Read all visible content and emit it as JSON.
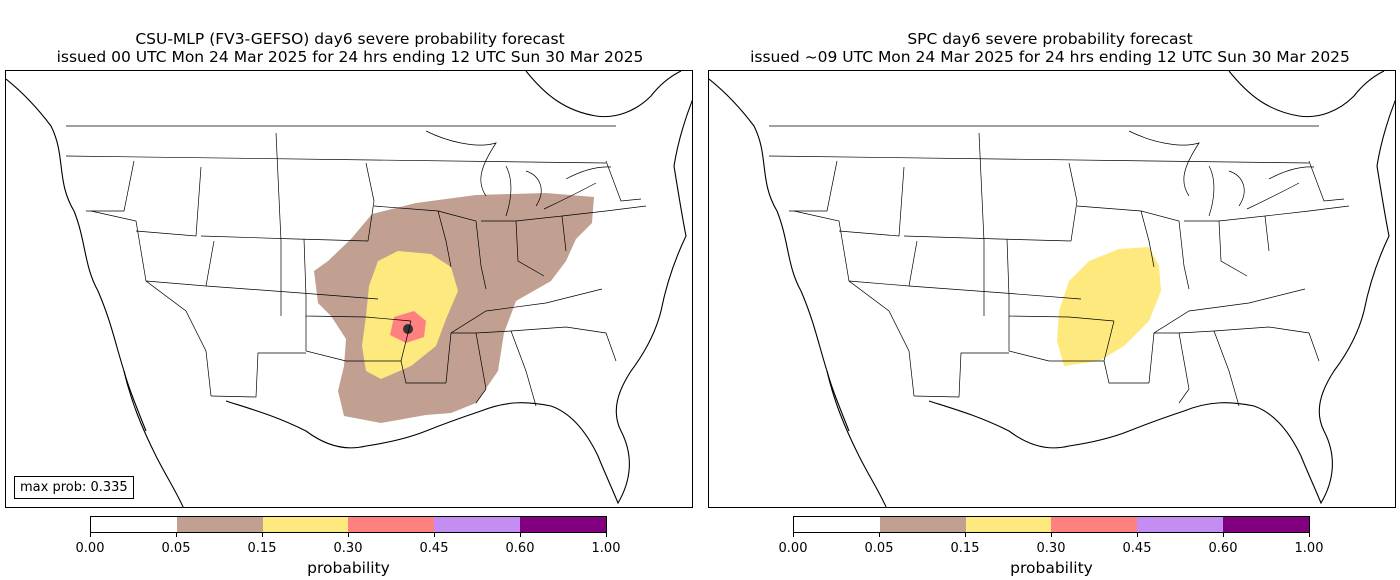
{
  "colors": {
    "bins": [
      "#ffffff",
      "#c2a091",
      "#fde97d",
      "#ff8080",
      "#c38df2",
      "#800080"
    ],
    "point": "#333333"
  },
  "colorbar": {
    "ticks": [
      "0.00",
      "0.05",
      "0.15",
      "0.30",
      "0.45",
      "0.60",
      "1.00"
    ],
    "label": "probability"
  },
  "left_panel": {
    "title_line1": "CSU-MLP (FV3-GEFSO) day6 severe probability forecast",
    "title_line2": "issued 00 UTC Mon 24 Mar 2025 for 24 hrs ending 12 UTC Sun 30 Mar 2025",
    "max_prob_label": "max prob: 0.335"
  },
  "right_panel": {
    "title_line1": "SPC day6 severe probability forecast",
    "title_line2": "issued ~09 UTC Mon 24 Mar 2025 for 24 hrs ending 12 UTC Sun 30 Mar 2025"
  }
}
